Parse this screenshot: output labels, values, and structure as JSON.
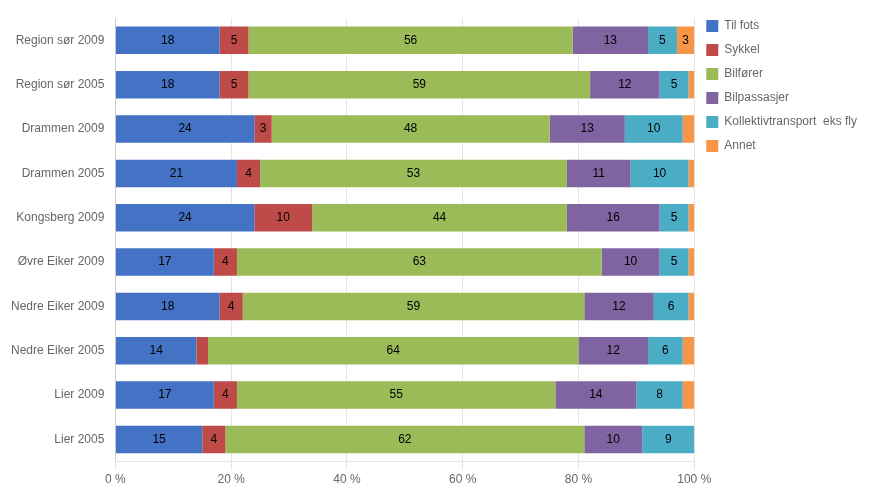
{
  "chart_data": {
    "type": "bar",
    "orientation": "horizontal",
    "stacked": true,
    "categories": [
      "Region sør 2009",
      "Region sør 2005",
      "Drammen 2009",
      "Drammen 2005",
      "Kongsberg 2009",
      "Øvre Eiker 2009",
      "Nedre Eiker 2009",
      "Nedre Eiker 2005",
      "Lier 2009",
      "Lier 2005"
    ],
    "series": [
      {
        "name": "Til fots",
        "color": "#4472C4",
        "values": [
          18,
          18,
          24,
          21,
          24,
          17,
          18,
          14,
          17,
          15
        ],
        "value_labels": [
          "18",
          "18",
          "24",
          "21",
          "24",
          "17",
          "18",
          "14",
          "17",
          "15"
        ]
      },
      {
        "name": "Sykkel",
        "color": "#BE4B48",
        "values": [
          5,
          5,
          3,
          4,
          10,
          4,
          4,
          2,
          4,
          4
        ],
        "value_labels": [
          "5",
          "5",
          "3",
          "4",
          "10",
          "4",
          "4",
          null,
          "4",
          "4"
        ]
      },
      {
        "name": "Bilfører",
        "color": "#9BBB59",
        "values": [
          56,
          59,
          48,
          53,
          44,
          63,
          59,
          64,
          55,
          62
        ],
        "value_labels": [
          "56",
          "59",
          "48",
          "53",
          "44",
          "63",
          "59",
          "64",
          "55",
          "62"
        ]
      },
      {
        "name": "Bilpassasjer",
        "color": "#8064A2",
        "values": [
          13,
          12,
          13,
          11,
          16,
          10,
          12,
          12,
          14,
          10
        ],
        "value_labels": [
          "13",
          "12",
          "13",
          "11",
          "16",
          "10",
          "12",
          "12",
          "14",
          "10"
        ]
      },
      {
        "name": "Kollektivtransport  eks fly",
        "color": "#4BACC6",
        "values": [
          5,
          5,
          10,
          10,
          5,
          5,
          6,
          6,
          8,
          9
        ],
        "value_labels": [
          "5",
          "5",
          "10",
          "10",
          "5",
          "5",
          "6",
          "6",
          "8",
          "9"
        ]
      },
      {
        "name": "Annet",
        "color": "#F79646",
        "values": [
          3,
          1,
          2,
          1,
          1,
          1,
          1,
          2,
          2,
          0
        ],
        "value_labels": [
          "3",
          null,
          null,
          null,
          null,
          null,
          null,
          null,
          null,
          null
        ]
      }
    ],
    "xlim": [
      0,
      100
    ],
    "xticks": [
      {
        "value": 0,
        "label": "0 %"
      },
      {
        "value": 20,
        "label": "20 %"
      },
      {
        "value": 40,
        "label": "40 %"
      },
      {
        "value": 60,
        "label": "60 %"
      },
      {
        "value": 80,
        "label": "80 %"
      },
      {
        "value": 100,
        "label": "100 %"
      }
    ],
    "grid": true,
    "legend": "right",
    "data_labels": true
  }
}
